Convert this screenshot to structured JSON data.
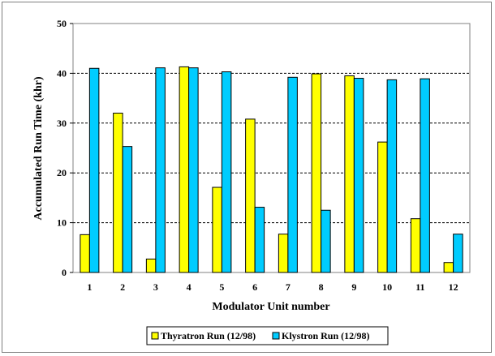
{
  "chart_data": {
    "type": "bar",
    "title": "",
    "xlabel": "Modulator Unit number",
    "ylabel": "Accumulated Run Time (khr)",
    "categories": [
      "1",
      "2",
      "3",
      "4",
      "5",
      "6",
      "7",
      "8",
      "9",
      "10",
      "11",
      "12"
    ],
    "ylim": [
      0,
      50
    ],
    "yticks": [
      "0",
      "10",
      "20",
      "30",
      "40",
      "50"
    ],
    "grid": true,
    "legend_position": "bottom",
    "series": [
      {
        "name": "Thyratron Run (12/98)",
        "color": "#ffff00",
        "values": [
          7.6,
          32.0,
          2.7,
          41.3,
          17.1,
          30.8,
          7.7,
          39.9,
          39.5,
          26.2,
          10.8,
          2.0
        ]
      },
      {
        "name": "Klystron Run (12/98)",
        "color": "#00ccff",
        "values": [
          41.0,
          25.3,
          41.1,
          41.1,
          40.3,
          13.1,
          39.2,
          12.5,
          39.0,
          38.7,
          38.9,
          7.7
        ]
      }
    ]
  }
}
